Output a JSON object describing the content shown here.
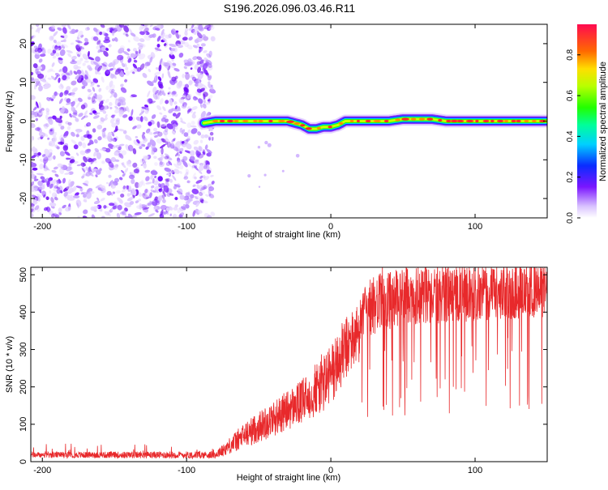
{
  "title": "S196.2026.096.03.46.R11",
  "chart_data": [
    {
      "type": "heatmap",
      "name": "spectrogram",
      "xlabel": "Height of straight line (km)",
      "ylabel": "Frequency (Hz)",
      "xlim": [
        -208,
        150
      ],
      "ylim": [
        -25,
        25
      ],
      "xticks": [
        -200,
        -100,
        0,
        100
      ],
      "yticks": [
        -20,
        -10,
        0,
        10,
        20
      ],
      "noise_region_x": [
        -208,
        -85
      ],
      "signal_start_x": -88,
      "ridge": {
        "x": [
          -88,
          -80,
          -70,
          -60,
          -50,
          -40,
          -30,
          -20,
          -15,
          -10,
          -5,
          0,
          5,
          10,
          15,
          20,
          30,
          40,
          50,
          60,
          70,
          80,
          90,
          100,
          110,
          120,
          130,
          140,
          150
        ],
        "freq": [
          -0.5,
          0,
          0,
          0,
          0,
          0,
          0,
          -1,
          -2,
          -2,
          -1.5,
          -1.5,
          -1,
          0,
          0,
          0,
          0,
          0,
          0.5,
          0.5,
          0.5,
          0,
          0,
          0,
          0,
          0,
          0,
          0,
          0
        ]
      },
      "colorbar": {
        "label": "Normalized spectral amplitude",
        "range": [
          0.0,
          0.95
        ],
        "ticks": [
          "0.0",
          "0.2",
          "0.4",
          "0.6",
          "0.8"
        ],
        "tick_values": [
          0.0,
          0.2,
          0.4,
          0.6,
          0.8
        ]
      }
    },
    {
      "type": "line",
      "name": "snr",
      "xlabel": "Height of straight line (km)",
      "ylabel": "SNR (10 * v/v)",
      "xlim": [
        -208,
        150
      ],
      "ylim": [
        0,
        520
      ],
      "xticks": [
        -200,
        -100,
        0,
        100
      ],
      "yticks": [
        0,
        100,
        200,
        300,
        400,
        500
      ],
      "color": "#e8292b",
      "trend": {
        "x": [
          -208,
          -150,
          -80,
          -75,
          -60,
          -40,
          -20,
          0,
          10,
          20,
          25,
          30,
          50,
          100,
          150
        ],
        "y": [
          18,
          18,
          18,
          30,
          70,
          115,
          160,
          230,
          300,
          350,
          400,
          420,
          440,
          450,
          455
        ]
      },
      "noise": {
        "x": [
          -208,
          -80,
          -60,
          -20,
          0,
          25,
          150
        ],
        "y": [
          8,
          10,
          35,
          60,
          90,
          80,
          70
        ]
      }
    }
  ]
}
